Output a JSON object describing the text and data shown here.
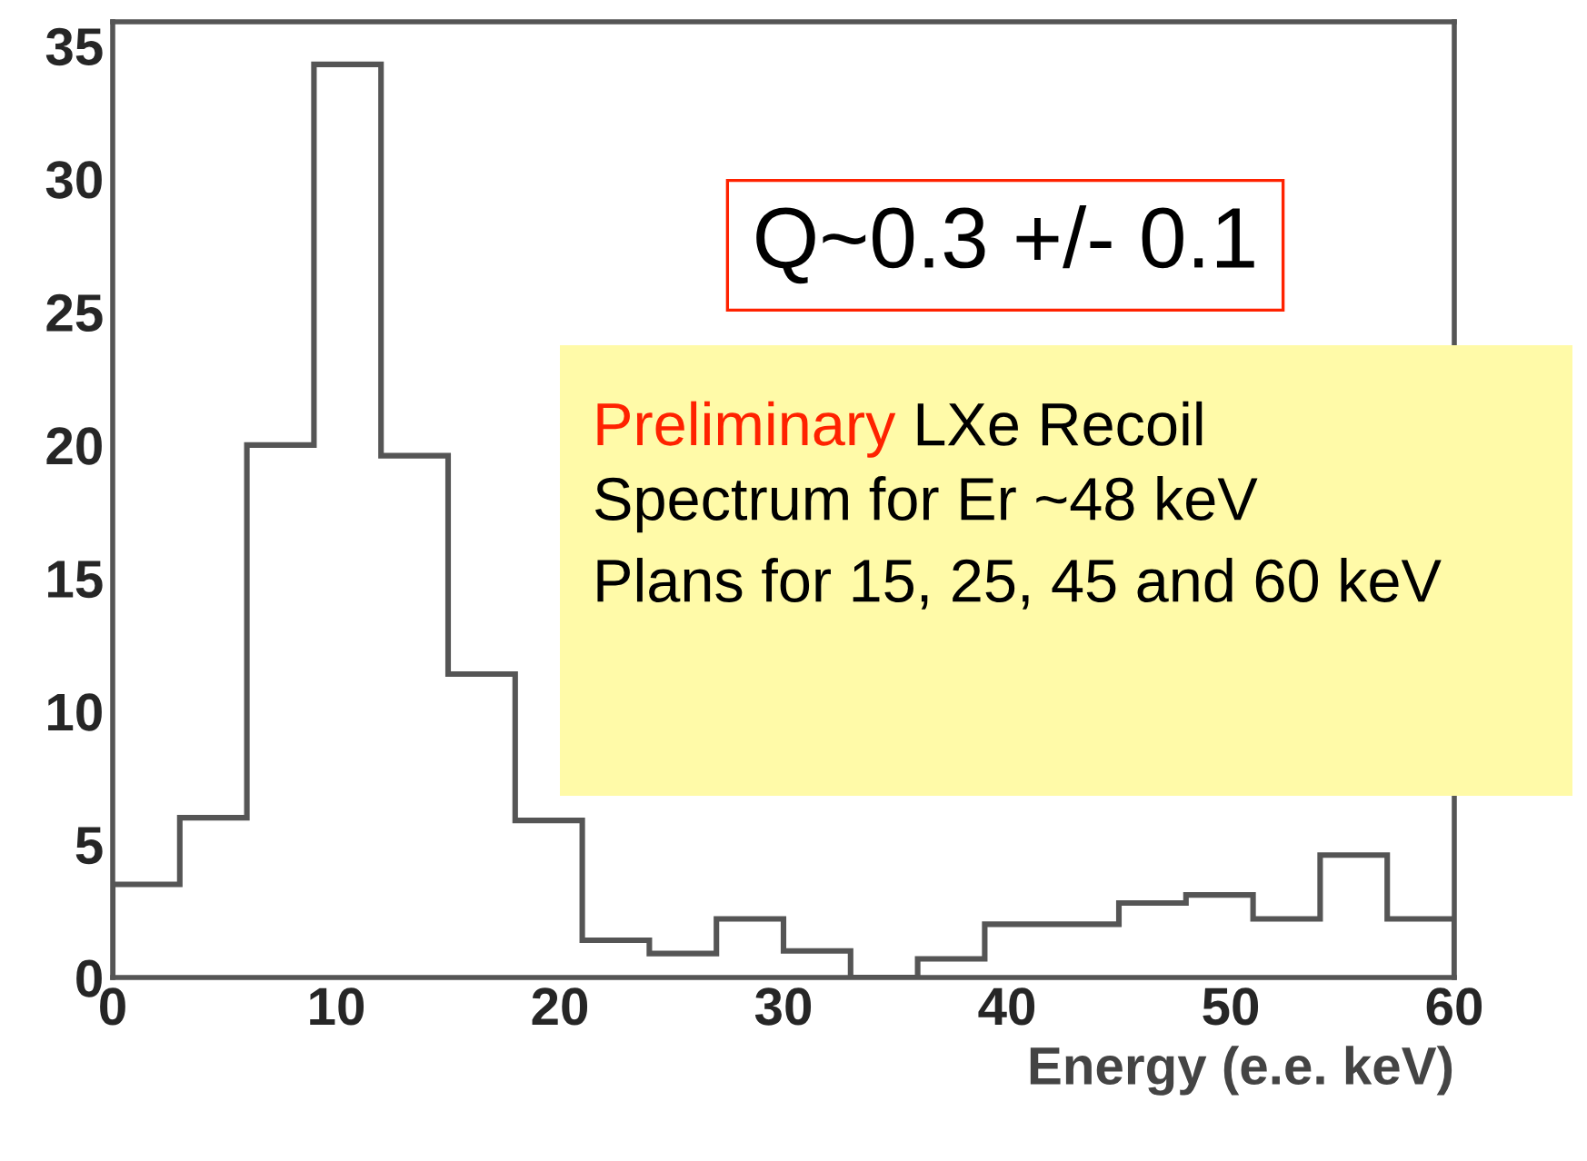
{
  "chart_data": {
    "type": "histogram",
    "xlabel": "Energy (e.e. keV)",
    "bins": [
      0,
      3,
      6,
      9,
      12,
      15,
      18,
      21,
      24,
      27,
      30,
      33,
      36,
      39,
      42,
      45,
      48,
      51,
      54,
      57,
      60
    ],
    "values": [
      3.5,
      6,
      20,
      34.3,
      19.6,
      11.4,
      5.9,
      1.4,
      0.9,
      2.2,
      1.0,
      0,
      0.7,
      2.0,
      2.0,
      2.8,
      3.1,
      2.2,
      4.6,
      2.2
    ],
    "color": "#555555",
    "xlim": [
      0,
      60
    ],
    "xticks": [
      0,
      10,
      20,
      30,
      40,
      50,
      60
    ],
    "ylim": [
      0,
      35.9
    ],
    "yticks": [
      0,
      5,
      10,
      15,
      20,
      25,
      30,
      35
    ],
    "grid": false,
    "annotations": [
      "Q~0.3 +/- 0.1",
      "Preliminary",
      "LXe Recoil",
      "Spectrum for Er ~48 keV",
      "Plans for 15, 25, 45 and 60 keV"
    ]
  }
}
